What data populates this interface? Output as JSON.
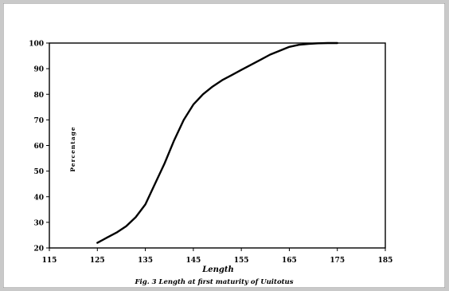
{
  "chart_data": {
    "type": "line",
    "title": "",
    "xlabel": "Length",
    "ylabel": "Percentage",
    "caption": "Fig. 3 Length at first maturity of Uuitotus",
    "xlim": [
      115,
      185
    ],
    "ylim": [
      20,
      100
    ],
    "x_ticks": [
      "115",
      "125",
      "135",
      "145",
      "155",
      "165",
      "175",
      "185"
    ],
    "y_ticks": [
      "20",
      "30",
      "40",
      "50",
      "60",
      "70",
      "80",
      "90",
      "100"
    ],
    "grid": false,
    "legend": "none",
    "line_color": "#000000",
    "series": [
      {
        "x": [
          125,
          127,
          129,
          131,
          133,
          135,
          137,
          139,
          141,
          143,
          145,
          147,
          149,
          151,
          153,
          155,
          157,
          159,
          161,
          163,
          165,
          167,
          169,
          171,
          173,
          175
        ],
        "values": [
          22,
          24,
          26,
          28.5,
          32,
          37,
          45,
          53,
          62,
          70,
          76,
          80,
          83,
          85.5,
          87.5,
          89.5,
          91.5,
          93.5,
          95.5,
          97,
          98.5,
          99.3,
          99.7,
          99.9,
          100,
          100
        ]
      }
    ]
  }
}
